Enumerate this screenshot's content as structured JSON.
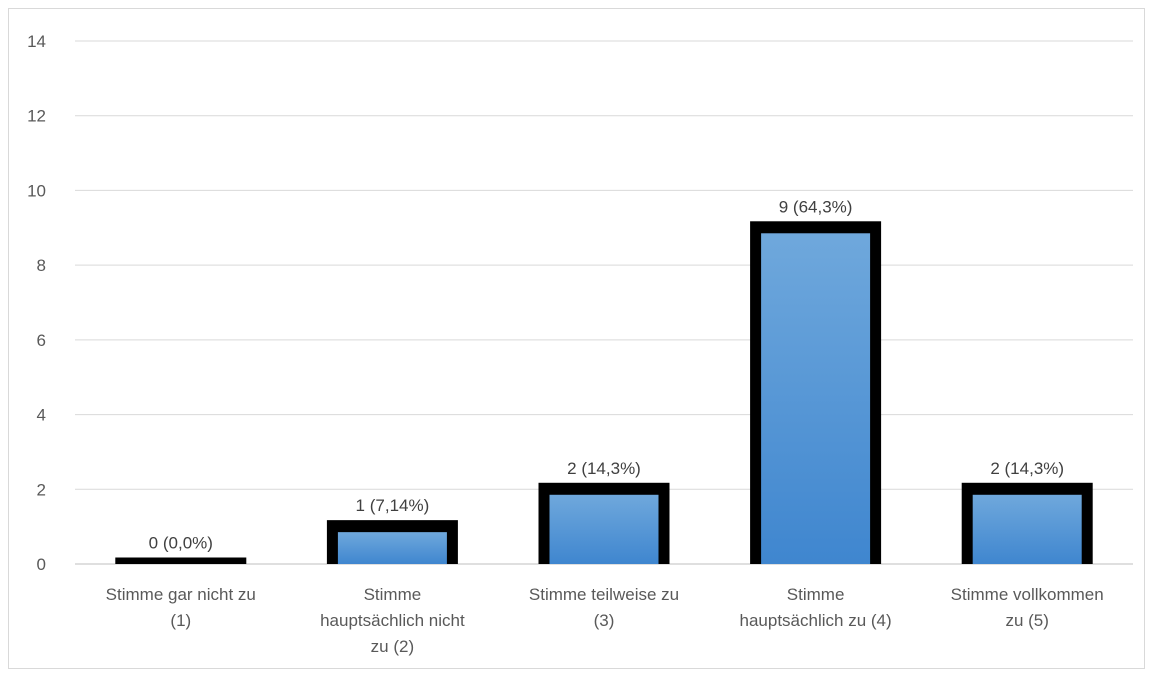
{
  "chart_data": {
    "type": "bar",
    "categories": [
      [
        "Stimme gar nicht zu",
        "(1)"
      ],
      [
        "Stimme",
        "hauptsächlich nicht",
        "zu (2)"
      ],
      [
        "Stimme teilweise zu",
        "(3)"
      ],
      [
        "Stimme",
        "hauptsächlich zu (4)"
      ],
      [
        "Stimme vollkommen",
        "zu (5)"
      ]
    ],
    "values": [
      0,
      1,
      2,
      9,
      2
    ],
    "data_labels": [
      "0 (0,0%)",
      "1 (7,14%)",
      "2 (14,3%)",
      "9 (64,3%)",
      "2 (14,3%)"
    ],
    "ylim": [
      0,
      14
    ],
    "yticks": [
      0,
      2,
      4,
      6,
      8,
      10,
      12,
      14
    ],
    "grid": true,
    "legend": "none",
    "colors": {
      "bar_top": "#6fa8dc",
      "bar_bottom": "#3f86cf",
      "bar_border": "#000000",
      "grid": "#d9d9d9",
      "axis": "#bfbfbf"
    }
  }
}
